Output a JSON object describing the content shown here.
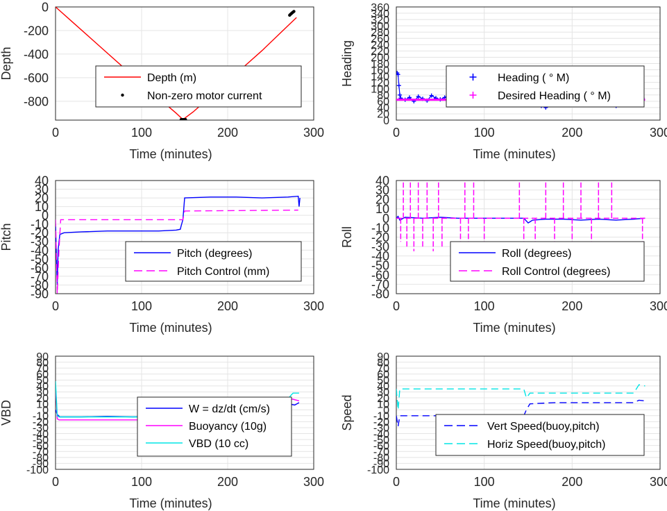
{
  "chart_data": [
    {
      "id": "depth",
      "type": "line",
      "ylabel": "Depth",
      "xlabel": "Time (minutes)",
      "xlim": [
        0,
        300
      ],
      "ylim": [
        -960,
        0
      ],
      "xticks": [
        "0",
        "100",
        "200",
        "300"
      ],
      "yticks": [
        "-800",
        "-600",
        "-400",
        "-200",
        "0"
      ],
      "grid": true,
      "legend_placement": "center",
      "series": [
        {
          "name": "Depth (m)",
          "style": "line",
          "color": "#ff0000",
          "x": [
            0,
            20,
            40,
            60,
            80,
            100,
            120,
            140,
            148,
            160,
            180,
            200,
            220,
            240,
            260,
            280
          ],
          "y": [
            0,
            -130,
            -260,
            -390,
            -520,
            -650,
            -775,
            -900,
            -955,
            -890,
            -760,
            -630,
            -500,
            -370,
            -230,
            -90
          ]
        },
        {
          "name": "Non-zero motor current",
          "style": "dots",
          "color": "#000000",
          "x": [
            146,
            147,
            148,
            149,
            150,
            151,
            272,
            273,
            274,
            275,
            276,
            277
          ],
          "y": [
            -955,
            -955,
            -955,
            -955,
            -955,
            -955,
            -70,
            -62,
            -56,
            -50,
            -44,
            -38
          ]
        }
      ]
    },
    {
      "id": "heading",
      "type": "scatter",
      "ylabel": "Heading",
      "xlabel": "Time (minutes)",
      "xlim": [
        0,
        300
      ],
      "ylim": [
        0,
        360
      ],
      "xticks": [
        "0",
        "100",
        "200",
        "300"
      ],
      "yticks": [
        "0",
        "20",
        "40",
        "60",
        "80",
        "100",
        "120",
        "140",
        "160",
        "180",
        "200",
        "220",
        "240",
        "260",
        "280",
        "300",
        "320",
        "340",
        "360"
      ],
      "grid": true,
      "legend_placement": "right",
      "series": [
        {
          "name": "Heading ( ° M)",
          "style": "plus",
          "color": "#0000ff",
          "x": [
            1,
            2,
            3,
            4,
            5,
            10,
            15,
            20,
            25,
            30,
            35,
            40,
            45,
            50,
            55,
            60,
            65,
            70,
            75,
            80,
            85,
            90,
            95,
            100,
            105,
            110,
            115,
            120,
            125,
            130,
            135,
            140,
            145,
            150,
            155,
            160,
            165,
            170,
            175,
            180,
            185,
            190,
            195,
            200,
            205,
            210,
            215,
            220,
            225,
            230,
            235,
            240,
            245,
            250,
            255,
            260,
            265,
            270,
            275,
            280
          ],
          "y": [
            150,
            145,
            110,
            80,
            70,
            65,
            72,
            60,
            75,
            68,
            62,
            78,
            70,
            66,
            72,
            80,
            60,
            70,
            75,
            64,
            70,
            78,
            62,
            70,
            72,
            66,
            74,
            60,
            70,
            76,
            68,
            72,
            62,
            58,
            70,
            60,
            45,
            40,
            78,
            90,
            62,
            70,
            74,
            66,
            70,
            68,
            72,
            60,
            74,
            70,
            66,
            72,
            68,
            45,
            70,
            72,
            66,
            70,
            74,
            70
          ]
        },
        {
          "name": "Desired Heading ( ° M)",
          "style": "plus",
          "color": "#ff00ff",
          "x": [
            0,
            50,
            100,
            150,
            200,
            250,
            283
          ],
          "y": [
            65,
            65,
            65,
            65,
            65,
            65,
            65
          ]
        }
      ]
    },
    {
      "id": "pitch",
      "type": "line",
      "ylabel": "Pitch",
      "xlabel": "Time (minutes)",
      "xlim": [
        0,
        300
      ],
      "ylim": [
        -90,
        40
      ],
      "xticks": [
        "0",
        "100",
        "200",
        "300"
      ],
      "yticks": [
        "-90",
        "-80",
        "-70",
        "-60",
        "-50",
        "-40",
        "-30",
        "-20",
        "-10",
        "0",
        "10",
        "20",
        "30",
        "40"
      ],
      "grid": true,
      "legend_placement": "bottom-right",
      "series": [
        {
          "name": "Pitch (degrees)",
          "style": "solid",
          "color": "#0000ff",
          "x": [
            0,
            2,
            3,
            5,
            10,
            30,
            60,
            90,
            120,
            140,
            145,
            146,
            148,
            150,
            180,
            210,
            240,
            270,
            282,
            283,
            284
          ],
          "y": [
            -10,
            -80,
            -40,
            -22,
            -20,
            -19,
            -18,
            -18,
            -18,
            -17,
            -16,
            -12,
            -5,
            20,
            21,
            21,
            20,
            21,
            22,
            10,
            20
          ]
        },
        {
          "name": "Pitch Control (mm)",
          "style": "dashed",
          "color": "#ff00ff",
          "x": [
            0,
            2,
            4,
            6,
            145,
            148,
            150,
            282
          ],
          "y": [
            -5,
            -90,
            -40,
            -5,
            -5,
            -5,
            5,
            6
          ]
        }
      ]
    },
    {
      "id": "roll",
      "type": "line",
      "ylabel": "Roll",
      "xlabel": "Time (minutes)",
      "xlim": [
        0,
        300
      ],
      "ylim": [
        -80,
        40
      ],
      "xticks": [
        "0",
        "100",
        "200",
        "300"
      ],
      "yticks": [
        "-80",
        "-70",
        "-60",
        "-50",
        "-40",
        "-30",
        "-20",
        "-10",
        "0",
        "10",
        "20",
        "30",
        "40"
      ],
      "grid": true,
      "legend_placement": "bottom-right",
      "series": [
        {
          "name": "Roll (degrees)",
          "style": "solid",
          "color": "#0000ff",
          "x": [
            0,
            2,
            4,
            10,
            30,
            50,
            70,
            90,
            110,
            130,
            145,
            150,
            155,
            170,
            190,
            210,
            230,
            250,
            270,
            283
          ],
          "y": [
            0,
            2,
            -2,
            1,
            0,
            1,
            0,
            0,
            0,
            0,
            0,
            -5,
            -2,
            -1,
            -1,
            -2,
            -1,
            -2,
            -1,
            0
          ]
        },
        {
          "name": "Roll Control (degrees)",
          "style": "dashed",
          "color": "#ff00ff",
          "spikes_x": [
            5,
            8,
            12,
            16,
            20,
            25,
            30,
            35,
            42,
            48,
            52,
            73,
            78,
            82,
            88,
            100,
            140,
            145,
            158,
            170,
            180,
            190,
            200,
            210,
            222,
            230,
            245,
            280
          ],
          "spikes_y": [
            -25,
            38,
            -30,
            38,
            -35,
            38,
            -30,
            38,
            -35,
            38,
            -30,
            -35,
            38,
            -35,
            38,
            -35,
            38,
            -30,
            -35,
            38,
            -30,
            38,
            -35,
            38,
            -30,
            38,
            38,
            -30
          ]
        }
      ]
    },
    {
      "id": "vbd",
      "type": "line",
      "ylabel": "VBD",
      "xlabel": "Time (minutes)",
      "xlim": [
        0,
        300
      ],
      "ylim": [
        -100,
        90
      ],
      "xticks": [
        "0",
        "100",
        "200",
        "300"
      ],
      "yticks": [
        "-100",
        "-90",
        "-80",
        "-70",
        "-60",
        "-50",
        "-40",
        "-30",
        "-20",
        "-10",
        "0",
        "10",
        "20",
        "30",
        "40",
        "50",
        "60",
        "70",
        "80",
        "90"
      ],
      "grid": true,
      "legend_placement": "bottom-right",
      "series": [
        {
          "name": "W = dz/dt (cm/s)",
          "style": "solid",
          "color": "#0000ff",
          "x": [
            0,
            2,
            5,
            30,
            60,
            90,
            120,
            145,
            147,
            150,
            180,
            210,
            240,
            270,
            278,
            283
          ],
          "y": [
            0,
            -8,
            -12,
            -12,
            -11,
            -12,
            -11,
            -12,
            0,
            10,
            11,
            10,
            11,
            10,
            8,
            12
          ]
        },
        {
          "name": "Buoyancy (10g)",
          "style": "solid",
          "color": "#ff00ff",
          "x": [
            0,
            2,
            4,
            100,
            145,
            148,
            150,
            270,
            275,
            283
          ],
          "y": [
            40,
            -15,
            -17,
            -17,
            -17,
            0,
            15,
            15,
            18,
            15
          ]
        },
        {
          "name": "VBD (10 cc)",
          "style": "solid",
          "color": "#00e5e5",
          "x": [
            0,
            2,
            4,
            100,
            145,
            148,
            150,
            270,
            274,
            276,
            283
          ],
          "y": [
            48,
            -10,
            -12,
            -12,
            -12,
            0,
            18,
            18,
            25,
            28,
            28
          ]
        }
      ]
    },
    {
      "id": "speed",
      "type": "line",
      "ylabel": "Speed",
      "xlabel": "Time (minutes)",
      "xlim": [
        0,
        300
      ],
      "ylim": [
        -100,
        90
      ],
      "xticks": [
        "0",
        "100",
        "200",
        "300"
      ],
      "yticks": [
        "-100",
        "-90",
        "-80",
        "-70",
        "-60",
        "-50",
        "-40",
        "-30",
        "-20",
        "-10",
        "0",
        "10",
        "20",
        "30",
        "40",
        "50",
        "60",
        "70",
        "80",
        "90"
      ],
      "grid": true,
      "legend_placement": "bottom-right",
      "series": [
        {
          "name": "Vert Speed(buoy,pitch)",
          "style": "dashed",
          "color": "#0000ff",
          "x": [
            0,
            2,
            4,
            30,
            60,
            90,
            120,
            145,
            148,
            152,
            180,
            210,
            240,
            270,
            276,
            283
          ],
          "y": [
            -10,
            -28,
            -10,
            -10,
            -10,
            -10,
            -10,
            -10,
            0,
            10,
            12,
            12,
            12,
            12,
            16,
            15
          ]
        },
        {
          "name": "Horiz Speed(buoy,pitch)",
          "style": "dashed",
          "color": "#00e5e5",
          "x": [
            0,
            2,
            4,
            30,
            60,
            90,
            120,
            145,
            148,
            152,
            180,
            210,
            240,
            270,
            276,
            283
          ],
          "y": [
            35,
            0,
            35,
            35,
            35,
            35,
            35,
            35,
            20,
            28,
            28,
            28,
            28,
            28,
            42,
            40
          ]
        }
      ]
    }
  ]
}
